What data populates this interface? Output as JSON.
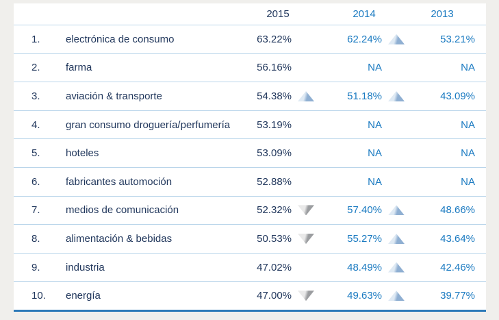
{
  "colors": {
    "page_background": "#f0efec",
    "table_background": "#ffffff",
    "dark_text": "#21375c",
    "blue_text": "#1a7ac1",
    "row_separator": "#b9d5ea",
    "bottom_rule": "#2d7ab8",
    "trend_up_light": "#dfeaf4",
    "trend_up_dark": "#8fafd2",
    "trend_down_light": "#e9e9e9",
    "trend_down_dark": "#9b9da0"
  },
  "table": {
    "headers": {
      "y2015": "2015",
      "y2014": "2014",
      "y2013": "2013"
    },
    "rows": [
      {
        "rank": "1.",
        "sector": "electrónica de consumo",
        "y2015": {
          "value": "63.22%",
          "trend": "none"
        },
        "y2014": {
          "value": "62.24%",
          "trend": "up"
        },
        "y2013": {
          "value": "53.21%"
        }
      },
      {
        "rank": "2.",
        "sector": "farma",
        "y2015": {
          "value": "56.16%",
          "trend": "none"
        },
        "y2014": {
          "value": "NA",
          "trend": "none"
        },
        "y2013": {
          "value": "NA"
        }
      },
      {
        "rank": "3.",
        "sector": "aviación & transporte",
        "y2015": {
          "value": "54.38%",
          "trend": "up"
        },
        "y2014": {
          "value": "51.18%",
          "trend": "up"
        },
        "y2013": {
          "value": "43.09%"
        }
      },
      {
        "rank": "4.",
        "sector": "gran consumo droguería/perfumería",
        "y2015": {
          "value": "53.19%",
          "trend": "none"
        },
        "y2014": {
          "value": "NA",
          "trend": "none"
        },
        "y2013": {
          "value": "NA"
        }
      },
      {
        "rank": "5.",
        "sector": "hoteles",
        "y2015": {
          "value": "53.09%",
          "trend": "none"
        },
        "y2014": {
          "value": "NA",
          "trend": "none"
        },
        "y2013": {
          "value": "NA"
        }
      },
      {
        "rank": "6.",
        "sector": "fabricantes automoción",
        "y2015": {
          "value": "52.88%",
          "trend": "none"
        },
        "y2014": {
          "value": "NA",
          "trend": "none"
        },
        "y2013": {
          "value": "NA"
        }
      },
      {
        "rank": "7.",
        "sector": "medios de comunicación",
        "y2015": {
          "value": "52.32%",
          "trend": "down"
        },
        "y2014": {
          "value": "57.40%",
          "trend": "up"
        },
        "y2013": {
          "value": "48.66%"
        }
      },
      {
        "rank": "8.",
        "sector": "alimentación & bebidas",
        "y2015": {
          "value": "50.53%",
          "trend": "down"
        },
        "y2014": {
          "value": "55.27%",
          "trend": "up"
        },
        "y2013": {
          "value": "43.64%"
        }
      },
      {
        "rank": "9.",
        "sector": "industria",
        "y2015": {
          "value": "47.02%",
          "trend": "none"
        },
        "y2014": {
          "value": "48.49%",
          "trend": "up"
        },
        "y2013": {
          "value": "42.46%"
        }
      },
      {
        "rank": "10.",
        "sector": "energía",
        "y2015": {
          "value": "47.00%",
          "trend": "down"
        },
        "y2014": {
          "value": "49.63%",
          "trend": "up"
        },
        "y2013": {
          "value": "39.77%"
        }
      }
    ]
  },
  "chart_data": {
    "type": "table",
    "columns": [
      "rank",
      "sector",
      "2015",
      "2014",
      "2013"
    ],
    "units": "%",
    "rows": [
      [
        1,
        "electrónica de consumo",
        63.22,
        62.24,
        53.21
      ],
      [
        2,
        "farma",
        56.16,
        null,
        null
      ],
      [
        3,
        "aviación & transporte",
        54.38,
        51.18,
        43.09
      ],
      [
        4,
        "gran consumo droguería/perfumería",
        53.19,
        null,
        null
      ],
      [
        5,
        "hoteles",
        53.09,
        null,
        null
      ],
      [
        6,
        "fabricantes automoción",
        52.88,
        null,
        null
      ],
      [
        7,
        "medios de comunicación",
        52.32,
        57.4,
        48.66
      ],
      [
        8,
        "alimentación & bebidas",
        50.53,
        55.27,
        43.64
      ],
      [
        9,
        "industria",
        47.02,
        48.49,
        42.46
      ],
      [
        10,
        "energía",
        47.0,
        49.63,
        39.77
      ]
    ],
    "trend_markers": {
      "2015": [
        "none",
        "none",
        "up",
        "none",
        "none",
        "none",
        "down",
        "down",
        "none",
        "down"
      ],
      "2014": [
        "up",
        "none",
        "up",
        "none",
        "none",
        "none",
        "up",
        "up",
        "up",
        "up"
      ]
    }
  }
}
